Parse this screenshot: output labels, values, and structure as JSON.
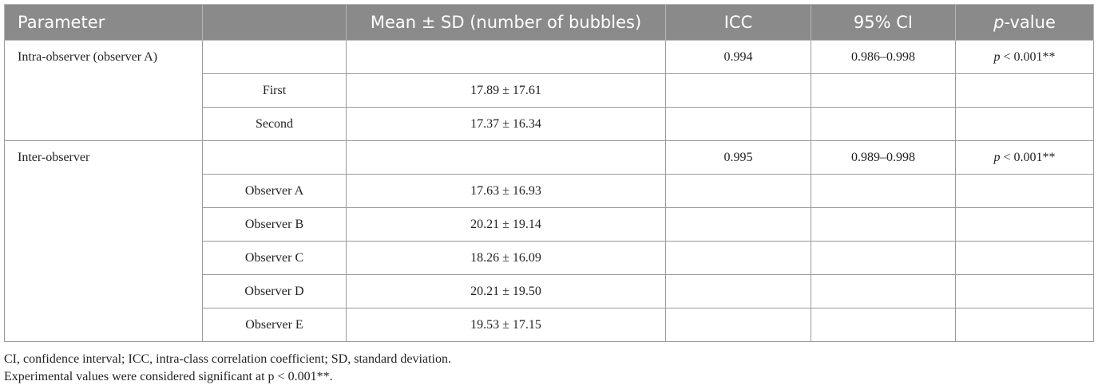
{
  "table": {
    "header": [
      "Parameter",
      "Mean ± SD (number of bubbles)",
      "ICC",
      "95% CI",
      "p-value"
    ],
    "groups": [
      {
        "label": "Intra-observer (observer A)",
        "icc": "0.994",
        "ci": "0.986–0.998",
        "p": "p < 0.001**",
        "items": [
          {
            "label": "First",
            "value": "17.89 ± 17.61"
          },
          {
            "label": "Second",
            "value": "17.37 ± 16.34"
          }
        ]
      },
      {
        "label": "Inter-observer",
        "icc": "0.995",
        "ci": "0.989–0.998",
        "p": "p < 0.001**",
        "items": [
          {
            "label": "Observer A",
            "value": "17.63 ± 16.93"
          },
          {
            "label": "Observer B",
            "value": "20.21 ± 19.14"
          },
          {
            "label": "Observer C",
            "value": "18.26 ± 16.09"
          },
          {
            "label": "Observer D",
            "value": "20.21 ± 19.50"
          },
          {
            "label": "Observer E",
            "value": "19.53 ± 17.15"
          }
        ]
      }
    ]
  },
  "notes": [
    "CI, confidence interval; ICC, intra-class correlation coefficient; SD, standard deviation.",
    "Experimental values were considered significant at p < 0.001**."
  ]
}
